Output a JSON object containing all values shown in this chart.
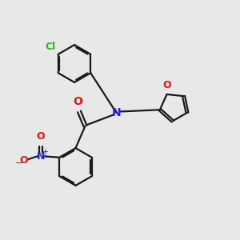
{
  "bg_color": "#e8e8e8",
  "bond_color": "#1a1a1a",
  "N_color": "#2020ee",
  "O_color": "#ee1010",
  "Cl_color": "#22bb22",
  "line_width": 1.6,
  "dbo": 0.055,
  "xlim": [
    0,
    10
  ],
  "ylim": [
    0,
    10
  ],
  "r_hex": 0.78,
  "r_fur": 0.6
}
